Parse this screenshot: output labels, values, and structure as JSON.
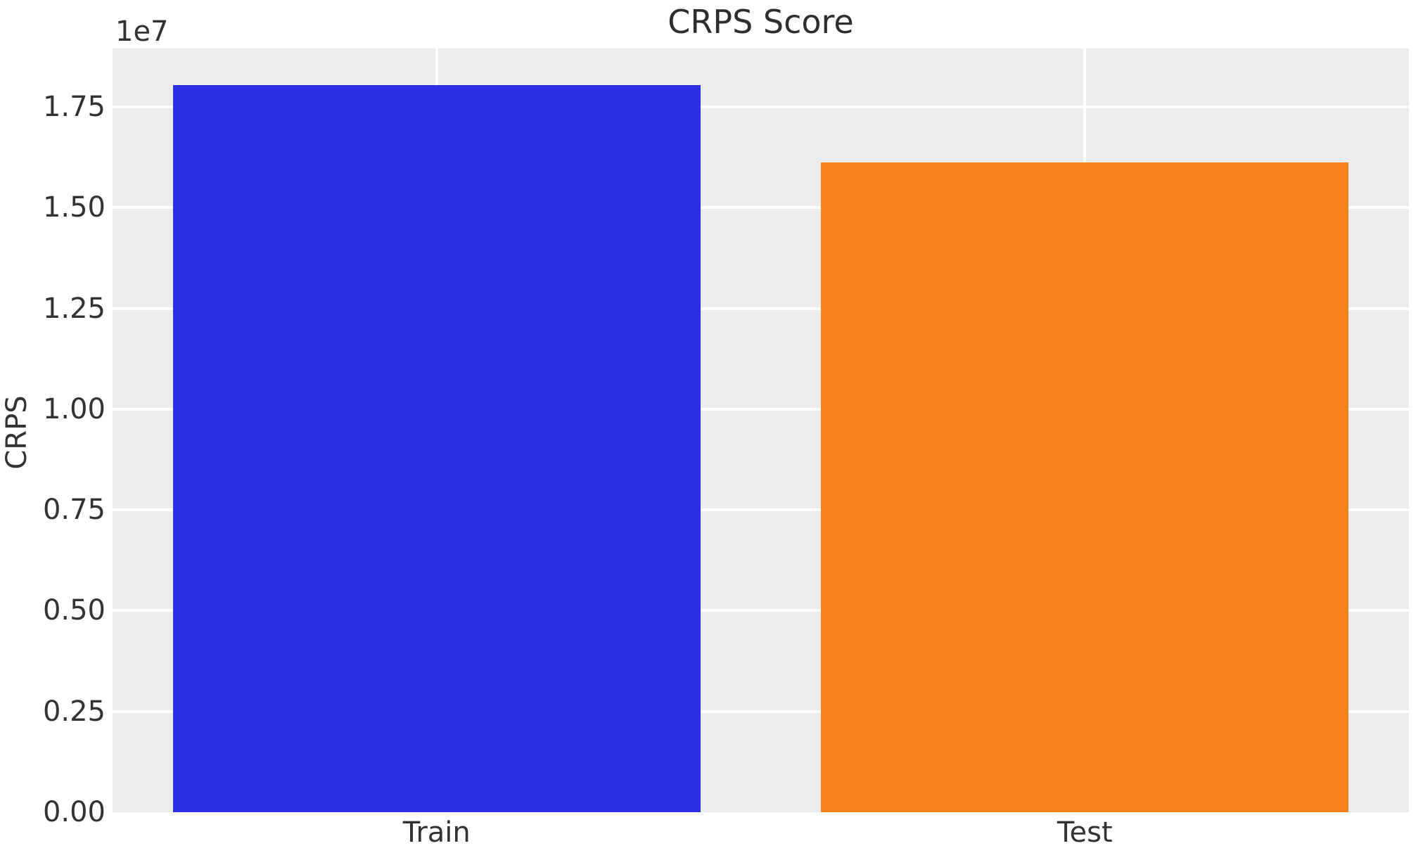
{
  "figure": {
    "background": "#ffffff"
  },
  "chart_data": {
    "type": "bar",
    "title": "CRPS Score",
    "xlabel": "",
    "ylabel": "CRPS",
    "y_offset_label": "1e7",
    "categories": [
      "Train",
      "Test"
    ],
    "values": [
      18040000,
      16130000
    ],
    "bar_colors": [
      "#2d2fe4",
      "#f8811a"
    ],
    "bar_width_fraction": 0.407,
    "ylim": [
      0,
      18950000
    ],
    "yticks": [
      {
        "value": 0,
        "label": "0.00"
      },
      {
        "value": 2500000,
        "label": "0.25"
      },
      {
        "value": 5000000,
        "label": "0.50"
      },
      {
        "value": 7500000,
        "label": "0.75"
      },
      {
        "value": 10000000,
        "label": "1.00"
      },
      {
        "value": 12500000,
        "label": "1.25"
      },
      {
        "value": 15000000,
        "label": "1.50"
      },
      {
        "value": 17500000,
        "label": "1.75"
      }
    ],
    "grid": true,
    "legend": false,
    "plot_background": "#ececec",
    "grid_color": "#ffffff",
    "text_color": "#333333"
  }
}
